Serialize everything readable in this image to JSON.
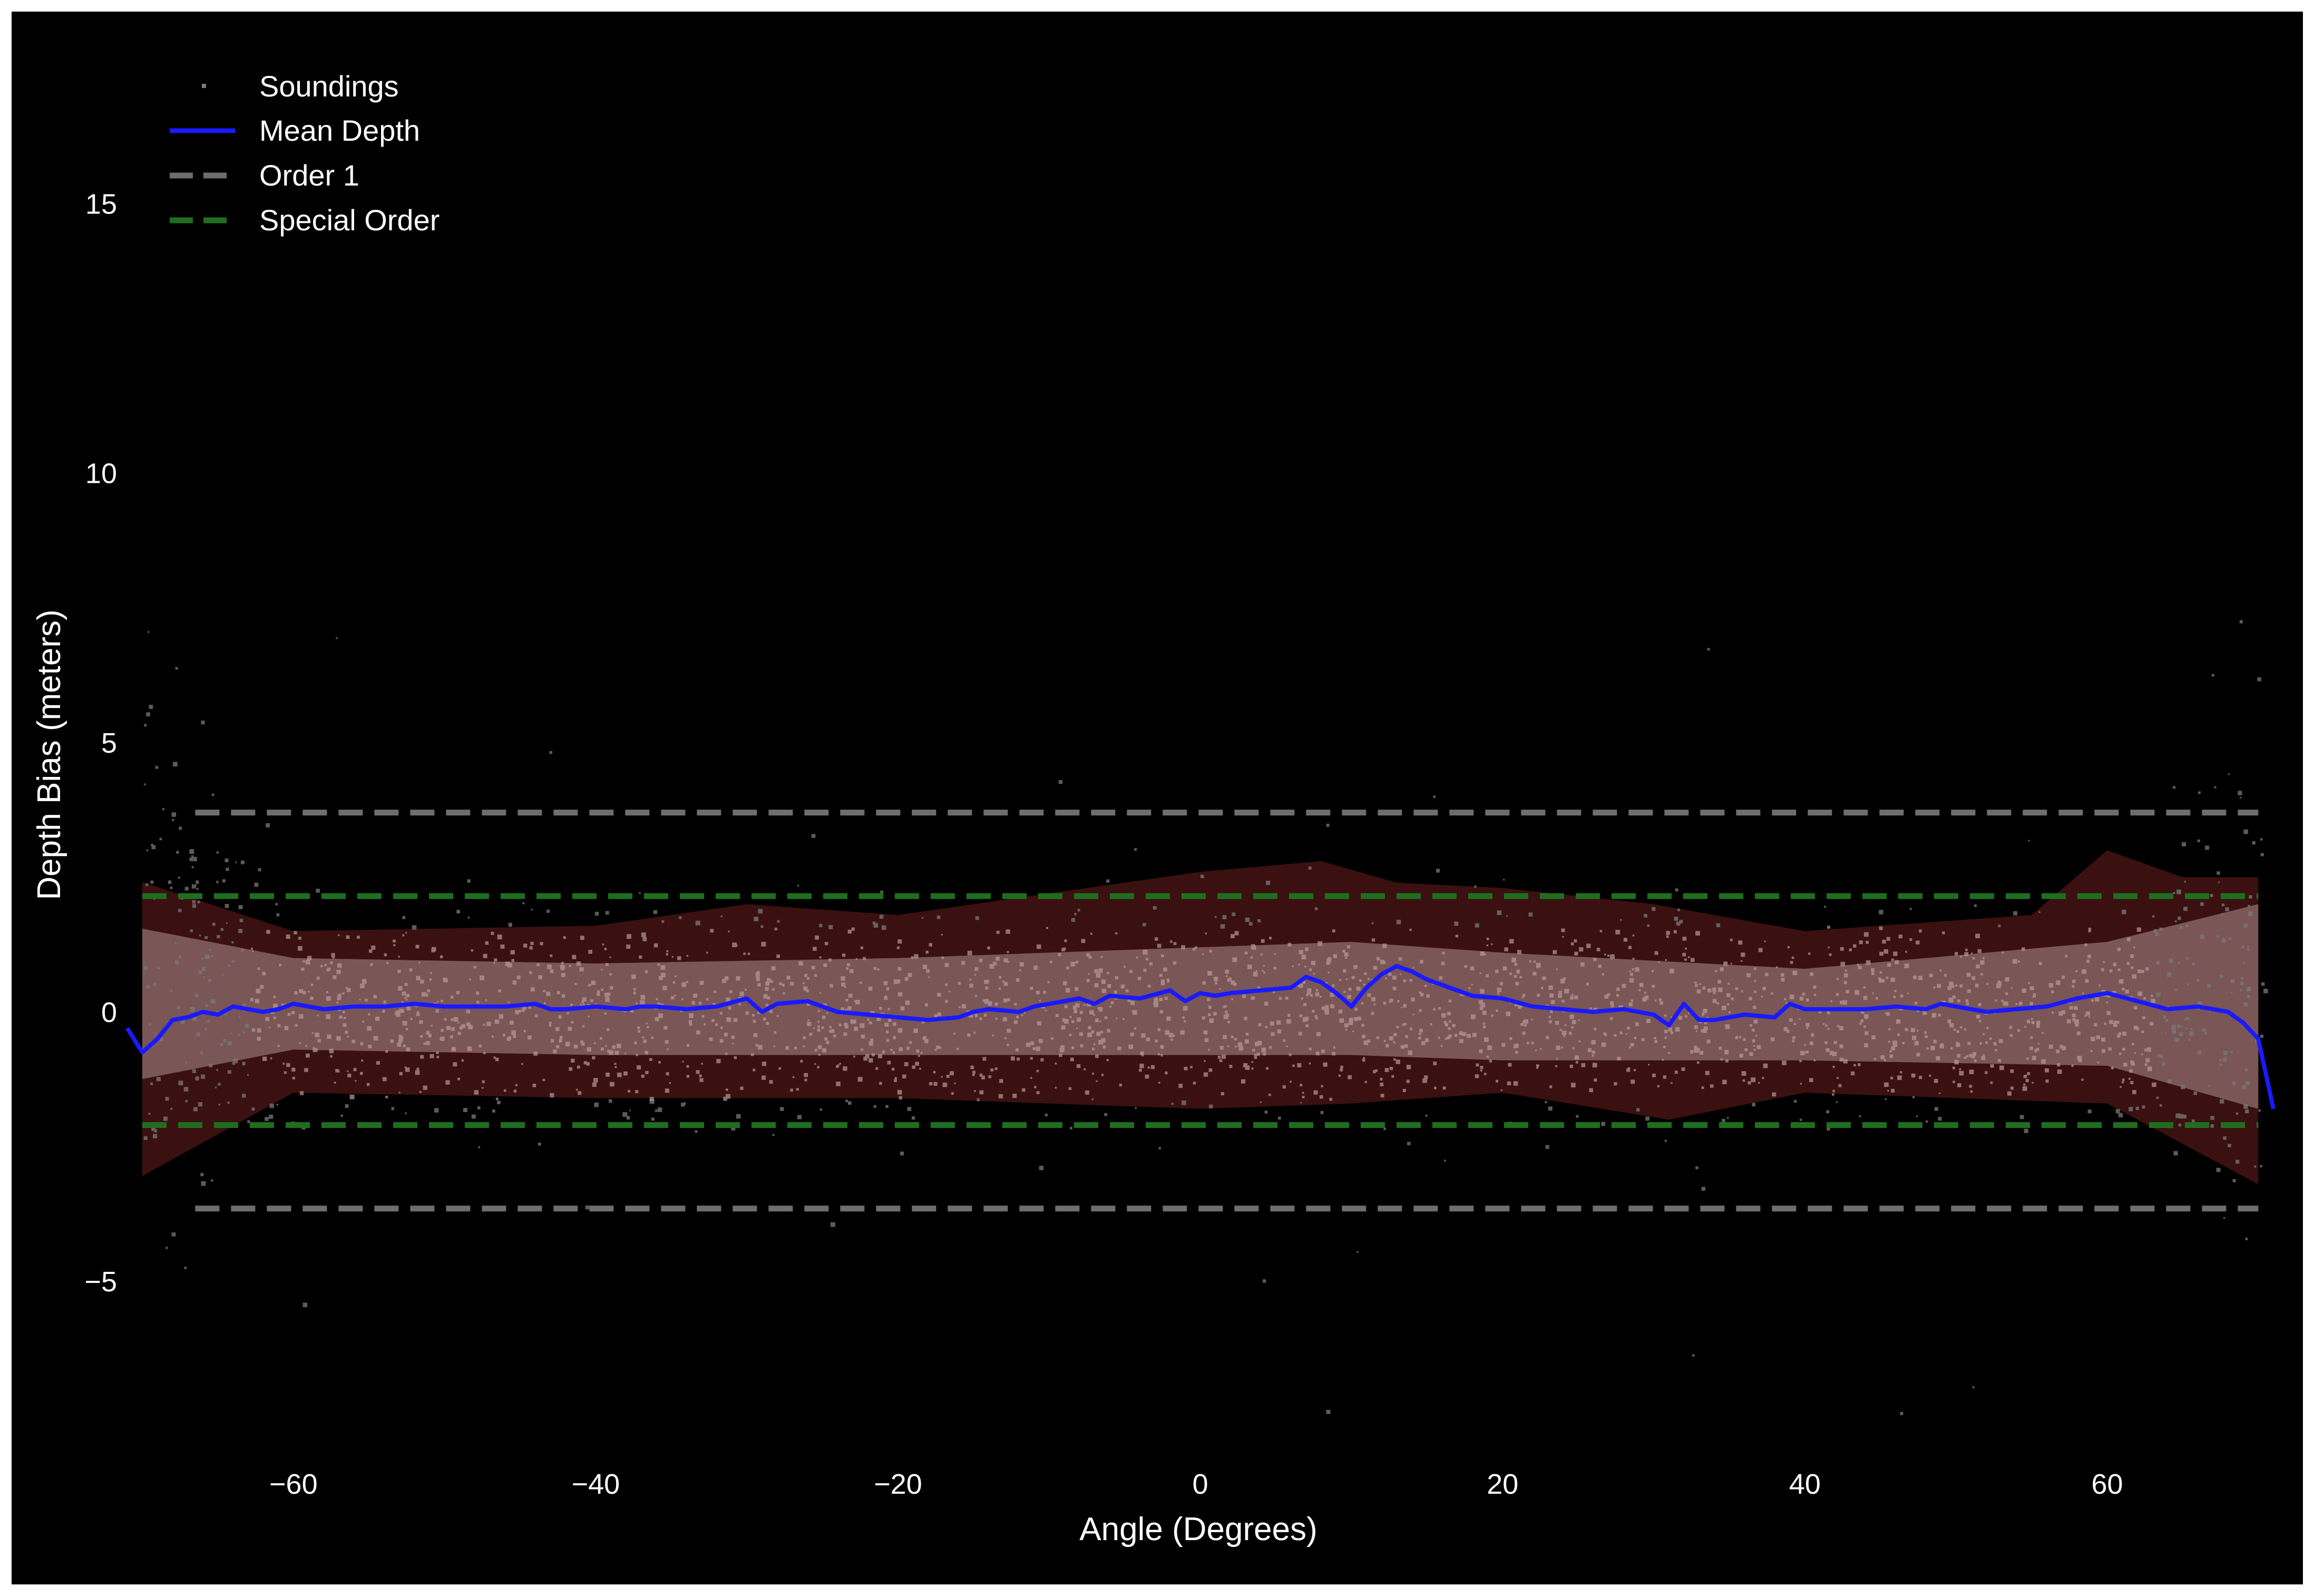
{
  "chart_data": {
    "type": "scatter",
    "title": "",
    "xlabel": "Angle (Degrees)",
    "ylabel": "Depth Bias (meters)",
    "xlim": [
      -70,
      71
    ],
    "ylim": [
      -8.2,
      18
    ],
    "xticks": [
      -60,
      -40,
      -20,
      0,
      20,
      40,
      60
    ],
    "yticks": [
      -5,
      0,
      5,
      10,
      15
    ],
    "grid": false,
    "legend_position": "top-left",
    "background": "#000000",
    "legend": [
      {
        "label": "Soundings",
        "style": "dots",
        "color": "#7a7a7a"
      },
      {
        "label": "Mean Depth",
        "style": "solid",
        "color": "#1a1aff"
      },
      {
        "label": "Order 1",
        "style": "dashed",
        "color": "#6e6e6e"
      },
      {
        "label": "Special Order",
        "style": "dashed",
        "color": "#1f6e1f"
      }
    ],
    "series": [
      {
        "name": "Mean Depth",
        "color": "#1a1aff",
        "x": [
          -71,
          -70,
          -69,
          -68,
          -67,
          -66,
          -65,
          -64,
          -63,
          -62,
          -61,
          -60,
          -58,
          -56,
          -54,
          -52,
          -50,
          -48,
          -46,
          -44,
          -43,
          -42,
          -40,
          -38,
          -37,
          -36,
          -34,
          -32,
          -30,
          -29,
          -28,
          -26,
          -24,
          -22,
          -20,
          -18,
          -16,
          -15,
          -14,
          -12,
          -11,
          -10,
          -8,
          -7,
          -6,
          -4,
          -2,
          -1,
          0,
          1,
          2,
          4,
          6,
          7,
          8,
          9,
          10,
          11,
          12,
          13,
          14,
          15,
          16,
          17,
          18,
          20,
          22,
          24,
          26,
          28,
          30,
          31,
          32,
          33,
          34,
          35,
          36,
          38,
          39,
          40,
          42,
          44,
          46,
          48,
          49,
          50,
          52,
          54,
          56,
          58,
          60,
          62,
          64,
          66,
          68,
          69,
          70,
          71
        ],
        "y": [
          -0.3,
          -0.75,
          -0.5,
          -0.15,
          -0.1,
          0.0,
          -0.05,
          0.1,
          0.05,
          0.0,
          0.05,
          0.15,
          0.05,
          0.1,
          0.1,
          0.15,
          0.1,
          0.1,
          0.1,
          0.15,
          0.05,
          0.05,
          0.1,
          0.05,
          0.1,
          0.1,
          0.05,
          0.1,
          0.25,
          0.0,
          0.15,
          0.2,
          0.0,
          -0.05,
          -0.1,
          -0.15,
          -0.1,
          0.0,
          0.05,
          0.0,
          0.1,
          0.15,
          0.25,
          0.15,
          0.3,
          0.25,
          0.4,
          0.2,
          0.35,
          0.3,
          0.35,
          0.4,
          0.45,
          0.65,
          0.55,
          0.35,
          0.1,
          0.45,
          0.7,
          0.85,
          0.75,
          0.6,
          0.5,
          0.4,
          0.3,
          0.25,
          0.1,
          0.05,
          0.0,
          0.05,
          -0.05,
          -0.25,
          0.15,
          -0.15,
          -0.15,
          -0.1,
          -0.05,
          -0.1,
          0.15,
          0.05,
          0.05,
          0.05,
          0.1,
          0.05,
          0.15,
          0.1,
          0.0,
          0.05,
          0.1,
          0.25,
          0.35,
          0.2,
          0.05,
          0.1,
          0.0,
          -0.2,
          -0.5,
          -1.8
        ]
      }
    ],
    "envelope": {
      "inner_upper": [
        [
          -71,
          1.6
        ],
        [
          -60,
          1.0
        ],
        [
          -40,
          0.9
        ],
        [
          -20,
          1.0
        ],
        [
          0,
          1.2
        ],
        [
          10,
          1.3
        ],
        [
          20,
          1.1
        ],
        [
          40,
          0.8
        ],
        [
          60,
          1.3
        ],
        [
          70,
          2.0
        ],
        [
          71,
          2.0
        ]
      ],
      "inner_lower": [
        [
          -71,
          -1.3
        ],
        [
          -60,
          -0.7
        ],
        [
          -40,
          -0.8
        ],
        [
          -20,
          -0.8
        ],
        [
          0,
          -0.8
        ],
        [
          10,
          -0.8
        ],
        [
          20,
          -0.9
        ],
        [
          40,
          -0.9
        ],
        [
          60,
          -1.0
        ],
        [
          70,
          -1.8
        ],
        [
          71,
          -2.0
        ]
      ],
      "outer_upper": [
        [
          -71,
          2.5
        ],
        [
          -60,
          1.5
        ],
        [
          -40,
          1.6
        ],
        [
          -30,
          2.0
        ],
        [
          -20,
          1.8
        ],
        [
          -10,
          2.2
        ],
        [
          0,
          2.6
        ],
        [
          8,
          2.8
        ],
        [
          13,
          2.4
        ],
        [
          20,
          2.3
        ],
        [
          30,
          2.0
        ],
        [
          40,
          1.5
        ],
        [
          55,
          1.8
        ],
        [
          60,
          3.0
        ],
        [
          65,
          2.5
        ],
        [
          70,
          2.5
        ]
      ],
      "outer_lower": [
        [
          -71,
          -3.2
        ],
        [
          -60,
          -1.5
        ],
        [
          -40,
          -1.6
        ],
        [
          -20,
          -1.6
        ],
        [
          -10,
          -1.7
        ],
        [
          0,
          -1.8
        ],
        [
          10,
          -1.7
        ],
        [
          20,
          -1.5
        ],
        [
          31,
          -2.0
        ],
        [
          40,
          -1.5
        ],
        [
          60,
          -1.7
        ],
        [
          70,
          -3.2
        ]
      ]
    },
    "reference_lines": [
      {
        "name": "Order 1",
        "y": [
          3.7,
          -3.65
        ],
        "x_range": [
          -66.5,
          70
        ],
        "color": "#6e6e6e"
      },
      {
        "name": "Special Order",
        "y": [
          2.15,
          -2.1
        ],
        "x_range": [
          -70,
          70
        ],
        "color": "#1f6e1f"
      }
    ]
  }
}
